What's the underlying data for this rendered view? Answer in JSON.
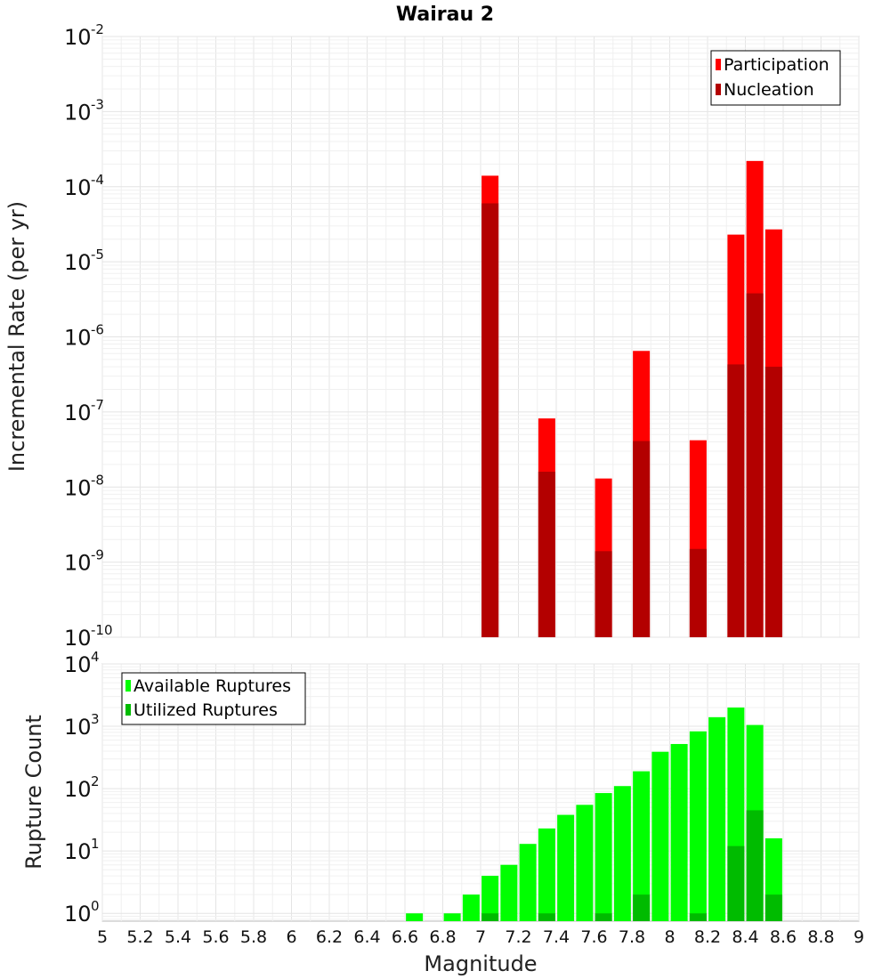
{
  "chart_data": [
    {
      "type": "bar",
      "title": "Wairau 2",
      "ylabel": "Incremental Rate (per yr)",
      "yscale": "log",
      "ylim": [
        1e-10,
        0.01
      ],
      "xlim": [
        5,
        9
      ],
      "grid": true,
      "legend_position": "top-right",
      "series": [
        {
          "name": "Participation",
          "color": "#ff0000",
          "points": [
            [
              7.05,
              0.00014
            ],
            [
              7.35,
              8.2e-08
            ],
            [
              7.65,
              1.3e-08
            ],
            [
              7.85,
              6.5e-07
            ],
            [
              8.15,
              4.2e-08
            ],
            [
              8.35,
              2.3e-05
            ],
            [
              8.45,
              0.00022
            ],
            [
              8.55,
              2.7e-05
            ]
          ]
        },
        {
          "name": "Nucleation",
          "color": "#b30000",
          "points": [
            [
              7.05,
              6e-05
            ],
            [
              7.35,
              1.6e-08
            ],
            [
              7.65,
              1.4e-09
            ],
            [
              7.85,
              4.1e-08
            ],
            [
              8.15,
              1.5e-09
            ],
            [
              8.35,
              4.3e-07
            ],
            [
              8.45,
              3.8e-06
            ],
            [
              8.55,
              4e-07
            ]
          ]
        }
      ]
    },
    {
      "type": "bar",
      "xlabel": "Magnitude",
      "ylabel": "Rupture Count",
      "yscale": "log",
      "ylim": [
        0.75,
        10000
      ],
      "xlim": [
        5,
        9
      ],
      "grid": true,
      "legend_position": "top-left",
      "series": [
        {
          "name": "Available Ruptures",
          "color": "#00ff00",
          "points": [
            [
              6.65,
              1
            ],
            [
              6.85,
              1
            ],
            [
              6.95,
              2
            ],
            [
              7.05,
              4
            ],
            [
              7.15,
              6
            ],
            [
              7.25,
              13
            ],
            [
              7.35,
              23
            ],
            [
              7.45,
              38
            ],
            [
              7.55,
              55
            ],
            [
              7.65,
              85
            ],
            [
              7.75,
              110
            ],
            [
              7.85,
              190
            ],
            [
              7.95,
              390
            ],
            [
              8.05,
              520
            ],
            [
              8.15,
              830
            ],
            [
              8.25,
              1400
            ],
            [
              8.35,
              2000
            ],
            [
              8.45,
              1050
            ],
            [
              8.55,
              16
            ]
          ]
        },
        {
          "name": "Utilized Ruptures",
          "color": "#00bb00",
          "points": [
            [
              7.05,
              1
            ],
            [
              7.35,
              1
            ],
            [
              7.65,
              1
            ],
            [
              7.85,
              2
            ],
            [
              8.15,
              1
            ],
            [
              8.35,
              12
            ],
            [
              8.45,
              45
            ],
            [
              8.55,
              2
            ]
          ]
        }
      ]
    }
  ],
  "x_ticks": [
    "5",
    "5.2",
    "5.4",
    "5.6",
    "5.8",
    "6",
    "6.2",
    "6.4",
    "6.6",
    "6.8",
    "7",
    "7.2",
    "7.4",
    "7.6",
    "7.8",
    "8",
    "8.2",
    "8.4",
    "8.6",
    "8.8",
    "9"
  ],
  "top_y_ticks": [
    {
      "base": "10",
      "exp": "-10",
      "value": 1e-10
    },
    {
      "base": "10",
      "exp": "-9",
      "value": 1e-09
    },
    {
      "base": "10",
      "exp": "-8",
      "value": 1e-08
    },
    {
      "base": "10",
      "exp": "-7",
      "value": 1e-07
    },
    {
      "base": "10",
      "exp": "-6",
      "value": 1e-06
    },
    {
      "base": "10",
      "exp": "-5",
      "value": 1e-05
    },
    {
      "base": "10",
      "exp": "-4",
      "value": 0.0001
    },
    {
      "base": "10",
      "exp": "-3",
      "value": 0.001
    },
    {
      "base": "10",
      "exp": "-2",
      "value": 0.01
    }
  ],
  "bottom_y_ticks": [
    {
      "base": "10",
      "exp": "0",
      "value": 1
    },
    {
      "base": "10",
      "exp": "1",
      "value": 10
    },
    {
      "base": "10",
      "exp": "2",
      "value": 100
    },
    {
      "base": "10",
      "exp": "3",
      "value": 1000
    },
    {
      "base": "10",
      "exp": "4",
      "value": 10000
    }
  ]
}
